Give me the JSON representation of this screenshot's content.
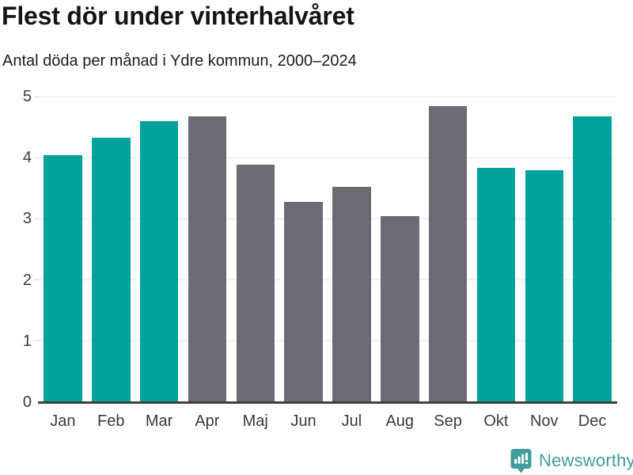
{
  "title": "Flest dör under vinterhalvåret",
  "subtitle": "Antal döda per månad i Ydre kommun, 2000–2024",
  "branding": {
    "logo_text": "Newsworthy",
    "logo_icon": "bar-chart-speech-bubble-icon",
    "logo_color": "#3f9e99"
  },
  "colors": {
    "winter_bar": "#00a29b",
    "summer_bar": "#6d6b72",
    "gridline": "#e7e7e7",
    "tick": "#d8d8d8",
    "axis_line": "#3f3f3f",
    "axis_label": "#3a3a3a"
  },
  "chart_data": {
    "type": "bar",
    "title": "Flest dör under vinterhalvåret",
    "subtitle": "Antal döda per månad i Ydre kommun, 2000–2024",
    "categories": [
      "Jan",
      "Feb",
      "Mar",
      "Apr",
      "Maj",
      "Jun",
      "Jul",
      "Aug",
      "Sep",
      "Okt",
      "Nov",
      "Dec"
    ],
    "values": [
      4.04,
      4.32,
      4.6,
      4.68,
      3.88,
      3.28,
      3.52,
      3.04,
      4.84,
      3.84,
      3.8,
      4.68
    ],
    "bar_groups": [
      "winter",
      "winter",
      "winter",
      "summer",
      "summer",
      "summer",
      "summer",
      "summer",
      "summer",
      "winter",
      "winter",
      "winter"
    ],
    "xlabel": "",
    "ylabel": "",
    "ylim": [
      0,
      5
    ],
    "yticks": [
      0,
      1,
      2,
      3,
      4,
      5
    ],
    "grid": true,
    "legend": false
  }
}
